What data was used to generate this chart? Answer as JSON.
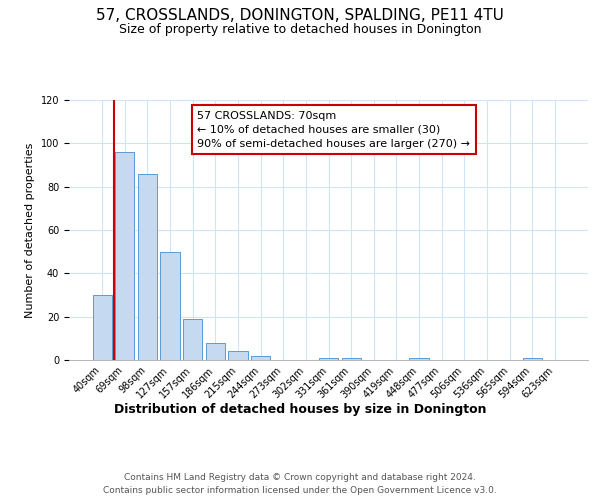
{
  "title": "57, CROSSLANDS, DONINGTON, SPALDING, PE11 4TU",
  "subtitle": "Size of property relative to detached houses in Donington",
  "xlabel": "Distribution of detached houses by size in Donington",
  "ylabel": "Number of detached properties",
  "bar_labels": [
    "40sqm",
    "69sqm",
    "98sqm",
    "127sqm",
    "157sqm",
    "186sqm",
    "215sqm",
    "244sqm",
    "273sqm",
    "302sqm",
    "331sqm",
    "361sqm",
    "390sqm",
    "419sqm",
    "448sqm",
    "477sqm",
    "506sqm",
    "536sqm",
    "565sqm",
    "594sqm",
    "623sqm"
  ],
  "bar_values": [
    30,
    96,
    86,
    50,
    19,
    8,
    4,
    2,
    0,
    0,
    1,
    1,
    0,
    0,
    1,
    0,
    0,
    0,
    0,
    1,
    0
  ],
  "bar_color": "#c5d9f1",
  "bar_edge_color": "#5b9bd5",
  "annotation_box_text": "57 CROSSLANDS: 70sqm\n← 10% of detached houses are smaller (30)\n90% of semi-detached houses are larger (270) →",
  "vline_color": "#cc0000",
  "ylim": [
    0,
    120
  ],
  "yticks": [
    0,
    20,
    40,
    60,
    80,
    100,
    120
  ],
  "footer_line1": "Contains HM Land Registry data © Crown copyright and database right 2024.",
  "footer_line2": "Contains public sector information licensed under the Open Government Licence v3.0.",
  "bg_color": "#ffffff",
  "grid_color": "#d0e4f7",
  "title_fontsize": 11,
  "subtitle_fontsize": 9,
  "annotation_fontsize": 8,
  "ylabel_fontsize": 8,
  "xlabel_fontsize": 9,
  "tick_fontsize": 7,
  "footer_fontsize": 6.5
}
